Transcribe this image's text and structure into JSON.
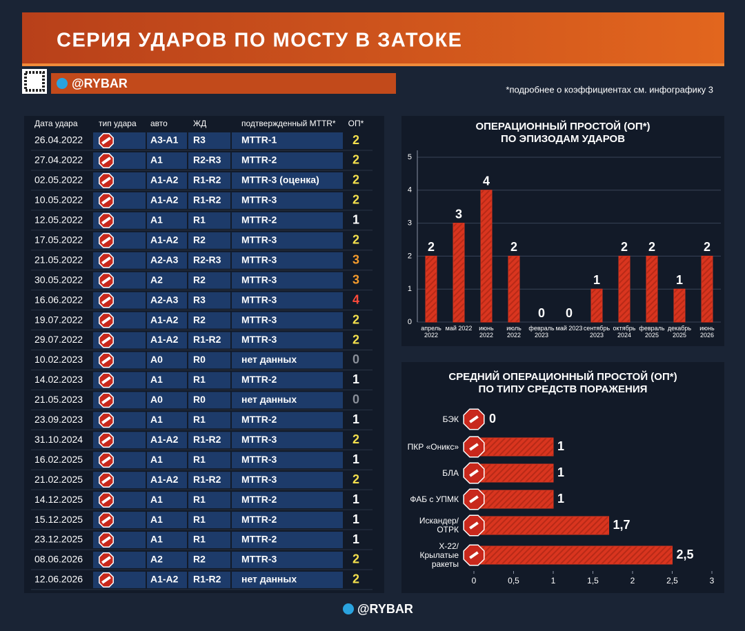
{
  "header": {
    "title": "СЕРИЯ УДАРОВ ПО МОСТУ В ЗАТОКЕ",
    "brand": "@RYBAR",
    "note": "*подробнее о коэффициентах см. инфографику 3"
  },
  "table": {
    "columns": [
      "Дата удара",
      "тип удара",
      "авто",
      "ЖД",
      "подтвержденный MTTR*",
      "ОП*"
    ],
    "rows": [
      [
        "26.04.2022",
        "А3-А1",
        "R3",
        "MTTR-1",
        2
      ],
      [
        "27.04.2022",
        "А1",
        "R2-R3",
        "MTTR-2",
        2
      ],
      [
        "02.05.2022",
        "А1-А2",
        "R1-R2",
        "MTTR-3 (оценка)",
        2
      ],
      [
        "10.05.2022",
        "А1-А2",
        "R1-R2",
        "MTTR-3",
        2
      ],
      [
        "12.05.2022",
        "А1",
        "R1",
        "MTTR-2",
        1
      ],
      [
        "17.05.2022",
        "А1-А2",
        "R2",
        "MTTR-3",
        2
      ],
      [
        "21.05.2022",
        "А2-А3",
        "R2-R3",
        "MTTR-3",
        3
      ],
      [
        "30.05.2022",
        "А2",
        "R2",
        "MTTR-3",
        3
      ],
      [
        "16.06.2022",
        "А2-А3",
        "R3",
        "MTTR-3",
        4
      ],
      [
        "19.07.2022",
        "А1-А2",
        "R2",
        "MTTR-3",
        2
      ],
      [
        "29.07.2022",
        "А1-А2",
        "R1-R2",
        "MTTR-3",
        2
      ],
      [
        "10.02.2023",
        "А0",
        "R0",
        "нет данных",
        0
      ],
      [
        "14.02.2023",
        "А1",
        "R1",
        "MTTR-2",
        1
      ],
      [
        "21.05.2023",
        "А0",
        "R0",
        "нет данных",
        0
      ],
      [
        "23.09.2023",
        "А1",
        "R1",
        "MTTR-2",
        1
      ],
      [
        "31.10.2024",
        "А1-А2",
        "R1-R2",
        "MTTR-3",
        2
      ],
      [
        "16.02.2025",
        "А1",
        "R1",
        "MTTR-3",
        1
      ],
      [
        "21.02.2025",
        "А1-А2",
        "R1-R2",
        "MTTR-3",
        2
      ],
      [
        "14.12.2025",
        "А1",
        "R1",
        "MTTR-2",
        1
      ],
      [
        "15.12.2025",
        "А1",
        "R1",
        "MTTR-2",
        1
      ],
      [
        "23.12.2025",
        "А1",
        "R1",
        "MTTR-2",
        1
      ],
      [
        "08.06.2026",
        "А2",
        "R2",
        "MTTR-3",
        2
      ],
      [
        "12.06.2026",
        "А1-А2",
        "R1-R2",
        "нет данных",
        2
      ]
    ]
  },
  "chart_data": [
    {
      "type": "bar",
      "title": "ОПЕРАЦИОННЫЙ ПРОСТОЙ (ОП*)\nПО ЭПИЗОДАМ УДАРОВ",
      "categories": [
        "апрель 2022",
        "май 2022",
        "июнь 2022",
        "июль 2022",
        "февраль 2023",
        "май 2023",
        "сентябрь 2023",
        "октябрь 2024",
        "февраль 2025",
        "декабрь 2025",
        "июнь 2026"
      ],
      "values": [
        2,
        3,
        4,
        2,
        0,
        0,
        1,
        2,
        2,
        1,
        2
      ],
      "color": "#d9351f",
      "ylim": [
        0,
        5
      ],
      "yticks": [
        0,
        1,
        2,
        3,
        4,
        5
      ],
      "grid": true
    },
    {
      "type": "hbar",
      "title": "СРЕДНИЙ ОПЕРАЦИОННЫЙ ПРОСТОЙ (ОП*)\nПО ТИПУ СРЕДСТВ ПОРАЖЕНИЯ",
      "categories": [
        "БЭК",
        "ПКР «Оникс»",
        "БЛА",
        "ФАБ с УПМК",
        "Искандер/ ОТРК",
        "Х-22/ Крылатые ракеты"
      ],
      "values": [
        0,
        1,
        1,
        1,
        1.7,
        2.5
      ],
      "value_labels": [
        "0",
        "1",
        "1",
        "1",
        "1,7",
        "2,5"
      ],
      "color": "#d9351f",
      "xlim": [
        0,
        3
      ],
      "xticks": [
        0,
        {
          "value": 0.5,
          "label": "0,5"
        },
        1,
        {
          "value": 1.5,
          "label": "1,5"
        },
        2,
        {
          "value": 2.5,
          "label": "2,5"
        },
        3
      ]
    }
  ]
}
